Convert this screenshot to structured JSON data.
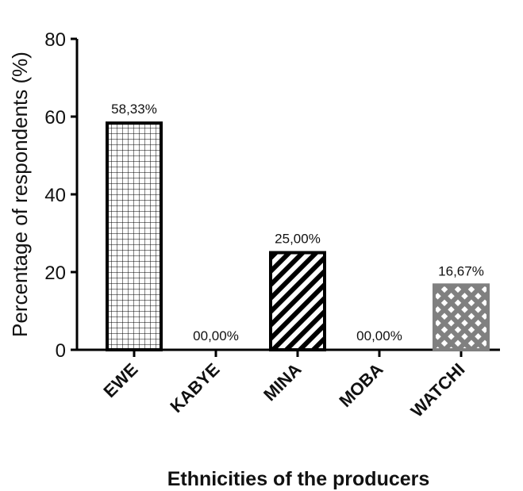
{
  "chart_data": {
    "type": "bar",
    "title": "",
    "xlabel": "Ethnicities of the producers",
    "ylabel": "Percentage of respondents (%)",
    "ylim": [
      0,
      80
    ],
    "yticks": [
      "0",
      "20",
      "40",
      "60",
      "80"
    ],
    "grid": false,
    "categories": [
      "EWE",
      "KABYE",
      "MINA",
      "MOBA",
      "WATCHI"
    ],
    "values": [
      58.33,
      0,
      25.0,
      0,
      16.67
    ],
    "data_labels": [
      "58,33%",
      "00,00%",
      "25,00%",
      "00,00%",
      "16,67%"
    ],
    "bar_styles": [
      {
        "pattern": "grid",
        "stroke": "#000000"
      },
      {
        "pattern": "none",
        "stroke": "#000000"
      },
      {
        "pattern": "diagonal",
        "stroke": "#000000"
      },
      {
        "pattern": "none",
        "stroke": "#000000"
      },
      {
        "pattern": "diamond-lattice",
        "stroke": "#808080"
      }
    ],
    "colors": {
      "ink": "#000000",
      "watchi_fill": "#808080"
    }
  }
}
